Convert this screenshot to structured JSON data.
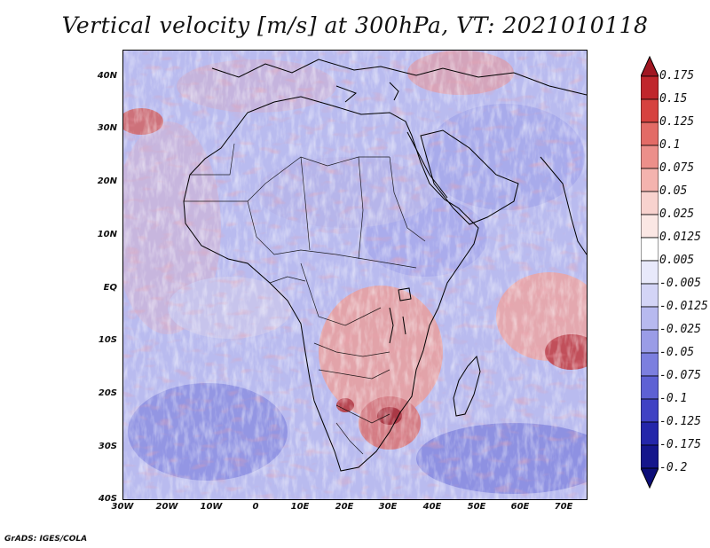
{
  "title": "Vertical velocity [m/s] at 300hPa, VT: 2021010118",
  "credit": "GrADS: IGES/COLA",
  "map": {
    "lat_labels": [
      "40N",
      "30N",
      "20N",
      "10N",
      "EQ",
      "10S",
      "20S",
      "30S",
      "40S"
    ],
    "lon_labels": [
      "30W",
      "20W",
      "10W",
      "0",
      "10E",
      "20E",
      "30E",
      "40E",
      "50E",
      "60E",
      "70E"
    ],
    "lat_range": [
      -40,
      45
    ],
    "lon_range": [
      -30,
      75
    ]
  },
  "colorbar": {
    "labels": [
      "0.175",
      "0.15",
      "0.125",
      "0.1",
      "0.075",
      "0.05",
      "0.025",
      "0.0125",
      "0.005",
      "-0.005",
      "-0.0125",
      "-0.025",
      "-0.05",
      "-0.075",
      "-0.1",
      "-0.125",
      "-0.175",
      "-0.2"
    ],
    "colors": [
      "#a11722",
      "#c0262c",
      "#d6423f",
      "#e36b66",
      "#ec8f8a",
      "#f4b3ae",
      "#f8d2ce",
      "#fbe7e4",
      "#ffffff",
      "#e8e9fb",
      "#d3d4f6",
      "#b7b9ef",
      "#9a9ce7",
      "#7c7fdf",
      "#5e61d4",
      "#4042c4",
      "#2426aa",
      "#15168c",
      "#0d0e78"
    ]
  },
  "colors": {
    "land_outline": "#000000",
    "positive_accent": "#c0262c",
    "negative_accent": "#4042c4"
  }
}
